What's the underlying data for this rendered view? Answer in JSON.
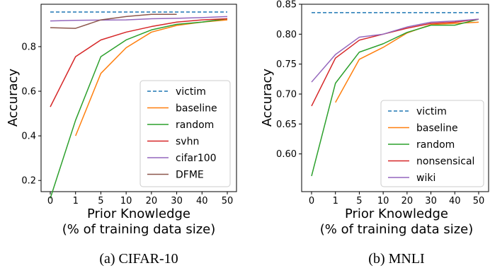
{
  "chart_data": [
    {
      "type": "line",
      "caption": "(a) CIFAR-10",
      "xlabel": "Prior Knowledge",
      "xlabel2": "(% of training data size)",
      "ylabel": "Accuracy",
      "categories": [
        "0",
        "1",
        "5",
        "10",
        "20",
        "30",
        "40",
        "50"
      ],
      "ylim": [
        0.15,
        0.99
      ],
      "yticks": [
        0.2,
        0.4,
        0.6,
        0.8
      ],
      "ytick_labels": [
        "0.2",
        "0.4",
        "0.6",
        "0.8"
      ],
      "legend_position": "lower-right",
      "series": [
        {
          "name": "victim",
          "color": "#1f77b4",
          "dashed": true,
          "values": [
            0.955,
            0.955,
            0.955,
            0.955,
            0.955,
            0.955,
            0.955,
            0.955
          ]
        },
        {
          "name": "baseline",
          "color": "#ff7f0e",
          "values": [
            null,
            0.4,
            0.68,
            0.795,
            0.865,
            0.895,
            0.91,
            0.92
          ]
        },
        {
          "name": "random",
          "color": "#2ca02c",
          "values": [
            0.12,
            0.47,
            0.755,
            0.83,
            0.875,
            0.9,
            0.91,
            0.925
          ]
        },
        {
          "name": "svhn",
          "color": "#d62728",
          "values": [
            0.53,
            0.755,
            0.83,
            0.865,
            0.89,
            0.91,
            0.92,
            0.925
          ]
        },
        {
          "name": "cifar100",
          "color": "#9467bd",
          "values": [
            0.915,
            0.918,
            0.919,
            0.92,
            0.925,
            0.927,
            0.93,
            0.935
          ]
        },
        {
          "name": "DFME",
          "color": "#8c564b",
          "values": [
            0.885,
            0.882,
            0.92,
            0.935,
            0.945,
            0.945,
            null,
            null
          ]
        }
      ]
    },
    {
      "type": "line",
      "caption": "(b) MNLI",
      "xlabel": "Prior Knowledge",
      "xlabel2": "(% of training data size)",
      "ylabel": "Accuracy",
      "categories": [
        "0",
        "1",
        "5",
        "10",
        "20",
        "30",
        "40",
        "50"
      ],
      "ylim": [
        0.537,
        0.85
      ],
      "yticks": [
        0.6,
        0.65,
        0.7,
        0.75,
        0.8,
        0.85
      ],
      "ytick_labels": [
        "0.60",
        "0.65",
        "0.70",
        "0.75",
        "0.80",
        "0.85"
      ],
      "legend_position": "lower-right",
      "series": [
        {
          "name": "victim",
          "color": "#1f77b4",
          "dashed": true,
          "values": [
            0.836,
            0.836,
            0.836,
            0.836,
            0.836,
            0.836,
            0.836,
            0.836
          ]
        },
        {
          "name": "baseline",
          "color": "#ff7f0e",
          "values": [
            null,
            0.686,
            0.758,
            0.778,
            0.802,
            0.816,
            0.818,
            0.82
          ]
        },
        {
          "name": "random",
          "color": "#2ca02c",
          "values": [
            0.563,
            0.718,
            0.77,
            0.784,
            0.803,
            0.815,
            0.815,
            0.825
          ]
        },
        {
          "name": "nonsensical",
          "color": "#d62728",
          "values": [
            0.68,
            0.76,
            0.79,
            0.8,
            0.81,
            0.818,
            0.82,
            0.825
          ]
        },
        {
          "name": "wiki",
          "color": "#9467bd",
          "values": [
            0.72,
            0.766,
            0.795,
            0.8,
            0.812,
            0.82,
            0.822,
            0.825
          ]
        }
      ]
    }
  ]
}
